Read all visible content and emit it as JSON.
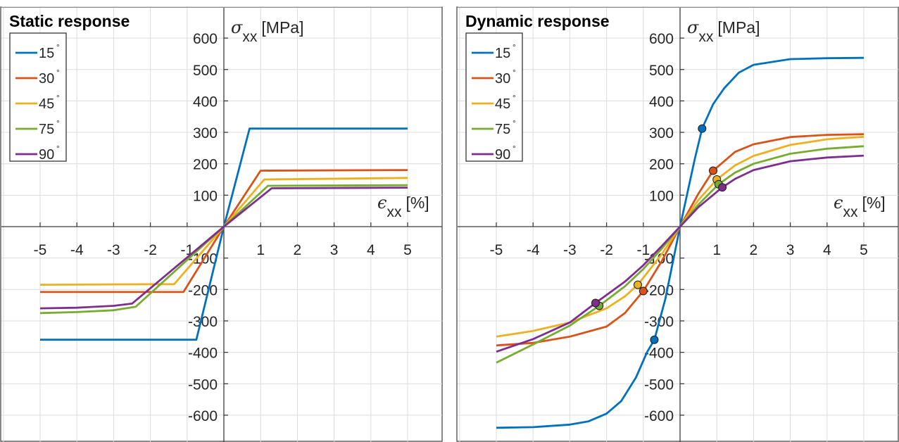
{
  "chart_data": [
    {
      "type": "line",
      "title": "Static response",
      "ylabel": "σ",
      "ylabel_sub": "xx",
      "ylabel_unit": "[MPa]",
      "xlabel": "ϵ",
      "xlabel_sub": "xx",
      "xlabel_unit": "[%]",
      "xlim": [
        -6,
        6
      ],
      "ylim": [
        -700,
        700
      ],
      "x_ticks": [
        "-5",
        "-4",
        "-3",
        "-2",
        "-1",
        "1",
        "2",
        "3",
        "4",
        "5"
      ],
      "y_ticks": [
        "600",
        "500",
        "400",
        "300",
        "200",
        "100",
        "-100",
        "-200",
        "-300",
        "-400",
        "-500",
        "-600"
      ],
      "grid": true,
      "legend_position": "top-left",
      "series": [
        {
          "name": "15",
          "color": "#0072BD",
          "x": [
            -5,
            -0.75,
            0,
            0.7,
            5
          ],
          "y": [
            -360,
            -360,
            0,
            312,
            312
          ]
        },
        {
          "name": "30",
          "color": "#D95319",
          "x": [
            -5,
            -1.1,
            0,
            1.0,
            5
          ],
          "y": [
            -208,
            -208,
            0,
            178,
            180
          ]
        },
        {
          "name": "45",
          "color": "#EDB120",
          "x": [
            -5,
            -1.35,
            0,
            1.1,
            5
          ],
          "y": [
            -185,
            -183,
            0,
            150,
            155
          ]
        },
        {
          "name": "75",
          "color": "#77AC30",
          "x": [
            -5,
            -4,
            -3,
            -2.4,
            0,
            1.2,
            5
          ],
          "y": [
            -275,
            -272,
            -266,
            -255,
            0,
            130,
            132
          ]
        },
        {
          "name": "90",
          "color": "#7E2F8E",
          "x": [
            -5,
            -4,
            -3,
            -2.5,
            0,
            1.3,
            5
          ],
          "y": [
            -260,
            -258,
            -252,
            -245,
            0,
            122,
            124
          ]
        }
      ],
      "markers": []
    },
    {
      "type": "line",
      "title": "Dynamic response",
      "ylabel": "σ",
      "ylabel_sub": "xx",
      "ylabel_unit": "[MPa]",
      "xlabel": "ϵ",
      "xlabel_sub": "xx",
      "xlabel_unit": "[%]",
      "xlim": [
        -6,
        6
      ],
      "ylim": [
        -700,
        700
      ],
      "x_ticks": [
        "-5",
        "-4",
        "-3",
        "-2",
        "-1",
        "1",
        "2",
        "3",
        "4",
        "5"
      ],
      "y_ticks": [
        "600",
        "500",
        "400",
        "300",
        "200",
        "100",
        "-100",
        "-200",
        "-300",
        "-400",
        "-500",
        "-600"
      ],
      "grid": true,
      "legend_position": "top-left",
      "series": [
        {
          "name": "15",
          "color": "#0072BD",
          "x": [
            -5,
            -4,
            -3,
            -2.5,
            -2,
            -1.6,
            -1.2,
            -0.9,
            -0.7,
            -0.4,
            0,
            0.4,
            0.6,
            0.9,
            1.2,
            1.6,
            2,
            3,
            4,
            5
          ],
          "y": [
            -640,
            -638,
            -630,
            -620,
            -595,
            -555,
            -480,
            -400,
            -360,
            -230,
            0,
            215,
            312,
            390,
            440,
            490,
            515,
            533,
            536,
            537
          ]
        },
        {
          "name": "30",
          "color": "#D95319",
          "x": [
            -5,
            -4,
            -3,
            -2,
            -1.5,
            -1,
            -0.5,
            0,
            0.5,
            0.9,
            1.5,
            2,
            3,
            4,
            5
          ],
          "y": [
            -378,
            -370,
            -350,
            -318,
            -275,
            -205,
            -110,
            0,
            105,
            178,
            238,
            262,
            285,
            292,
            294
          ]
        },
        {
          "name": "45",
          "color": "#EDB120",
          "x": [
            -5,
            -4,
            -3,
            -2,
            -1.5,
            -1.15,
            -0.5,
            0,
            0.5,
            1,
            1.5,
            2,
            3,
            4,
            5
          ],
          "y": [
            -350,
            -332,
            -305,
            -260,
            -222,
            -185,
            -88,
            0,
            85,
            150,
            195,
            225,
            260,
            278,
            286
          ]
        },
        {
          "name": "75",
          "color": "#77AC30",
          "x": [
            -5,
            -4,
            -3,
            -2.2,
            -1.5,
            -1,
            -0.5,
            0,
            0.5,
            1.05,
            1.5,
            2,
            3,
            4,
            5
          ],
          "y": [
            -433,
            -375,
            -315,
            -252,
            -190,
            -135,
            -70,
            0,
            70,
            135,
            172,
            200,
            232,
            248,
            256
          ]
        },
        {
          "name": "90",
          "color": "#7E2F8E",
          "x": [
            -5,
            -4,
            -3,
            -2.3,
            -1.5,
            -1,
            -0.5,
            0,
            0.5,
            1.15,
            1.5,
            2,
            3,
            4,
            5
          ],
          "y": [
            -398,
            -358,
            -305,
            -243,
            -175,
            -123,
            -62,
            0,
            62,
            125,
            152,
            180,
            208,
            220,
            226
          ]
        }
      ],
      "markers": [
        {
          "series": "15",
          "x": 0.6,
          "y": 312
        },
        {
          "series": "15",
          "x": -0.7,
          "y": -360
        },
        {
          "series": "30",
          "x": 0.9,
          "y": 178
        },
        {
          "series": "30",
          "x": -1.0,
          "y": -205
        },
        {
          "series": "45",
          "x": 1.0,
          "y": 150
        },
        {
          "series": "45",
          "x": -1.15,
          "y": -185
        },
        {
          "series": "75",
          "x": 1.05,
          "y": 135
        },
        {
          "series": "75",
          "x": -2.2,
          "y": -252
        },
        {
          "series": "90",
          "x": 1.15,
          "y": 125
        },
        {
          "series": "90",
          "x": -2.3,
          "y": -243
        }
      ]
    }
  ]
}
